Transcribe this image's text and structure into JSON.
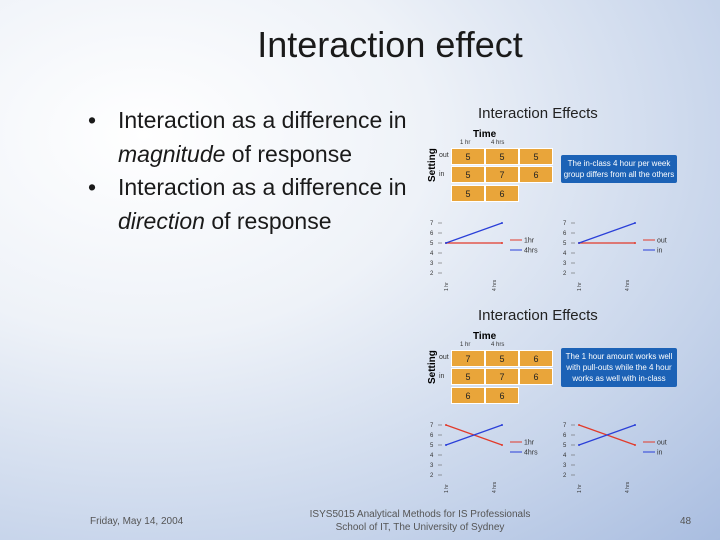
{
  "slide": {
    "title": "Interaction effect",
    "bullet1_a": "Interaction as a difference in ",
    "bullet1_em": "magnitude",
    "bullet1_b": " of response",
    "bullet2_a": "Interaction as a difference in ",
    "bullet2_em": "direction",
    "bullet2_b": " of response"
  },
  "panels": [
    {
      "title": "Interaction Effects",
      "time_label": "Time",
      "setting_label": "Setting",
      "col_labels": [
        "1 hr",
        "4 hrs"
      ],
      "row_labels": [
        "out",
        "in"
      ],
      "cells": [
        [
          "5",
          "5",
          "5"
        ],
        [
          "5",
          "7",
          "6"
        ],
        [
          "5",
          "6"
        ]
      ],
      "note": "The in-class 4 hour per week group differs from all the others",
      "legend_left": [
        "1hr",
        "4hrs"
      ],
      "legend_right": [
        "out",
        "in"
      ],
      "yticks": [
        "7",
        "6",
        "5",
        "4",
        "3",
        "2"
      ]
    },
    {
      "title": "Interaction Effects",
      "time_label": "Time",
      "setting_label": "Setting",
      "col_labels": [
        "1 hr",
        "4 hrs"
      ],
      "row_labels": [
        "out",
        "in"
      ],
      "cells": [
        [
          "7",
          "5",
          "6"
        ],
        [
          "5",
          "7",
          "6"
        ],
        [
          "6",
          "6"
        ]
      ],
      "note": "The 1 hour amount works well with pull-outs while the 4 hour works as well with in-class",
      "legend_left": [
        "1hr",
        "4hrs"
      ],
      "legend_right": [
        "out",
        "in"
      ],
      "yticks": [
        "7",
        "6",
        "5",
        "4",
        "3",
        "2"
      ]
    }
  ],
  "chart_data": [
    {
      "type": "line",
      "panel": 1,
      "chart": "left",
      "series": [
        {
          "name": "1hr",
          "values": [
            5,
            5
          ]
        },
        {
          "name": "4hrs",
          "values": [
            5,
            7
          ]
        }
      ],
      "ylim": [
        2,
        7
      ]
    },
    {
      "type": "line",
      "panel": 1,
      "chart": "right",
      "series": [
        {
          "name": "out",
          "values": [
            5,
            5
          ]
        },
        {
          "name": "in",
          "values": [
            5,
            7
          ]
        }
      ],
      "ylim": [
        2,
        7
      ]
    },
    {
      "type": "line",
      "panel": 2,
      "chart": "left",
      "series": [
        {
          "name": "1hr",
          "values": [
            7,
            5
          ]
        },
        {
          "name": "4hrs",
          "values": [
            5,
            7
          ]
        }
      ],
      "ylim": [
        2,
        7
      ]
    },
    {
      "type": "line",
      "panel": 2,
      "chart": "right",
      "series": [
        {
          "name": "out",
          "values": [
            7,
            5
          ]
        },
        {
          "name": "in",
          "values": [
            5,
            7
          ]
        }
      ],
      "ylim": [
        2,
        7
      ]
    }
  ],
  "colors": {
    "series_red": "#e23a2a",
    "series_blue": "#2a3fd8",
    "cell": "#e9a53a",
    "note": "#1c62b6"
  },
  "footer": {
    "date": "Friday, May 14, 2004",
    "course_line1": "ISYS5015 Analytical Methods for IS Professionals",
    "course_line2": "School of IT, The University of Sydney",
    "page_number": "48"
  }
}
